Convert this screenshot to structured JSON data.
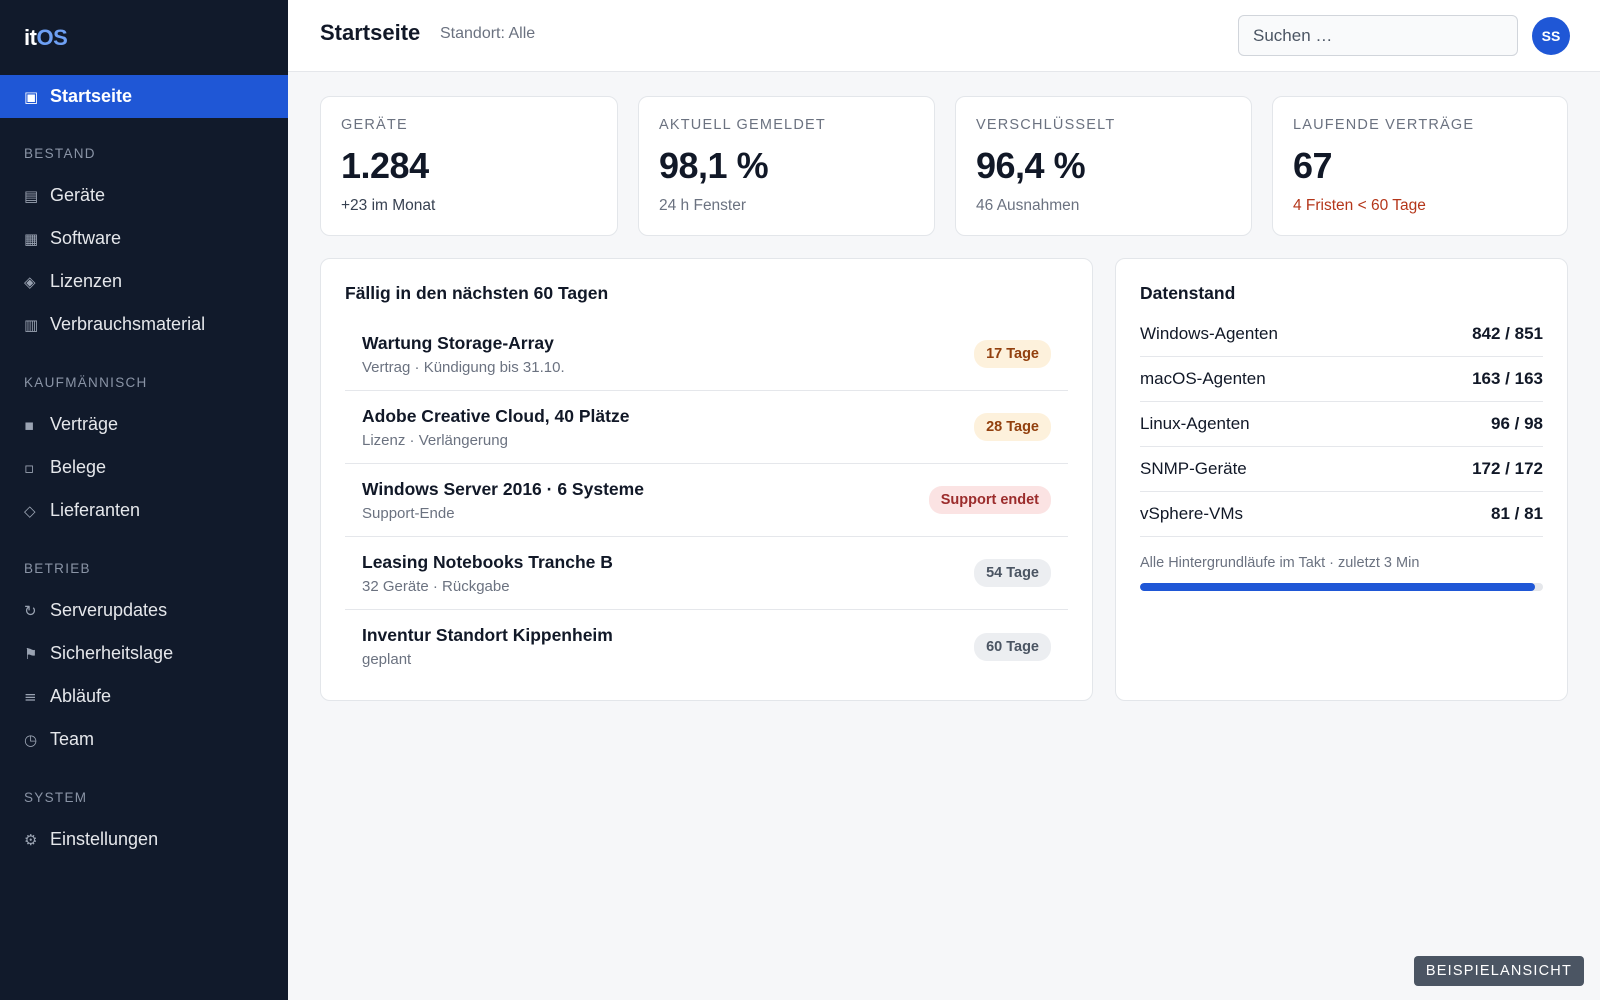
{
  "logo": {
    "prefix": "it",
    "suffix": "OS"
  },
  "nav": {
    "home": {
      "label": "Startseite",
      "icon": "home-icon"
    },
    "sections": [
      {
        "label": "BESTAND",
        "items": [
          {
            "label": "Geräte",
            "icon": "devices-icon"
          },
          {
            "label": "Software",
            "icon": "software-icon"
          },
          {
            "label": "Lizenzen",
            "icon": "license-icon"
          },
          {
            "label": "Verbrauchsmaterial",
            "icon": "supplies-icon"
          }
        ]
      },
      {
        "label": "KAUFMÄNNISCH",
        "items": [
          {
            "label": "Verträge",
            "icon": "contracts-icon"
          },
          {
            "label": "Belege",
            "icon": "receipts-icon"
          },
          {
            "label": "Lieferanten",
            "icon": "suppliers-icon"
          }
        ]
      },
      {
        "label": "BETRIEB",
        "items": [
          {
            "label": "Serverupdates",
            "icon": "refresh-icon"
          },
          {
            "label": "Sicherheitslage",
            "icon": "flag-icon"
          },
          {
            "label": "Abläufe",
            "icon": "list-icon"
          },
          {
            "label": "Team",
            "icon": "clock-icon"
          }
        ]
      },
      {
        "label": "SYSTEM",
        "items": [
          {
            "label": "Einstellungen",
            "icon": "gear-icon"
          }
        ]
      }
    ]
  },
  "header": {
    "title": "Startseite",
    "location": "Standort: Alle",
    "search_placeholder": "Suchen …",
    "avatar_initials": "SS"
  },
  "stats": [
    {
      "label": "GERÄTE",
      "value": "1.284",
      "sub": "+23 im Monat"
    },
    {
      "label": "AKTUELL GEMELDET",
      "value": "98,1 %",
      "sub": "24 h Fenster"
    },
    {
      "label": "VERSCHLÜSSELT",
      "value": "96,4 %",
      "sub": "46 Ausnahmen"
    },
    {
      "label": "LAUFENDE VERTRÄGE",
      "value": "67",
      "sub": "4 Fristen < 60 Tage"
    }
  ],
  "due": {
    "title": "Fällig in den nächsten 60 Tagen",
    "items": [
      {
        "name": "Wartung Storage-Array",
        "meta": "Vertrag · Kündigung bis 31.10.",
        "badge": "17 Tage"
      },
      {
        "name": "Adobe Creative Cloud, 40 Plätze",
        "meta": "Lizenz · Verlängerung",
        "badge": "28 Tage"
      },
      {
        "name": "Windows Server 2016 · 6 Systeme",
        "meta": "Support-Ende",
        "badge": "Support endet"
      },
      {
        "name": "Leasing Notebooks Tranche B",
        "meta": "32 Geräte · Rückgabe",
        "badge": "54 Tage"
      },
      {
        "name": "Inventur Standort Kippenheim",
        "meta": "geplant",
        "badge": "60 Tage"
      }
    ]
  },
  "datastate": {
    "title": "Datenstand",
    "rows": [
      {
        "name": "Windows-Agenten",
        "value": "842 / 851"
      },
      {
        "name": "macOS-Agenten",
        "value": "163 / 163"
      },
      {
        "name": "Linux-Agenten",
        "value": "96 / 98"
      },
      {
        "name": "SNMP-Geräte",
        "value": "172 / 172"
      },
      {
        "name": "vSphere-VMs",
        "value": "81 / 81"
      }
    ],
    "note": "Alle Hintergrundläufe im Takt · zuletzt 3 Min",
    "progress_percent": 98
  },
  "colors": {
    "accent": "#1f57d6",
    "sidebar": "#111a2b",
    "warning": "#b4361a"
  },
  "sample_tag": "BEISPIELANSICHT"
}
